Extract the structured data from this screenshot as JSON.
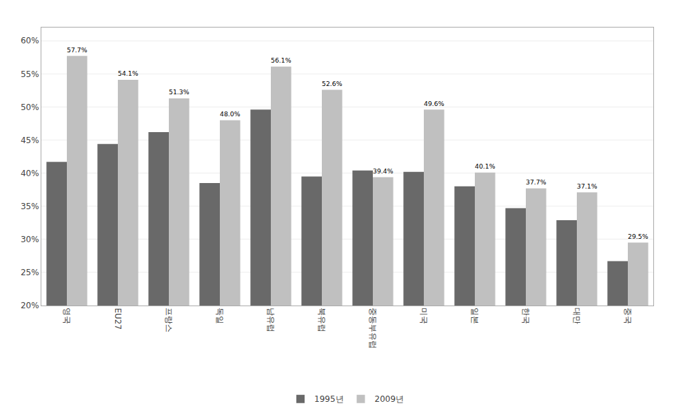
{
  "chart_data": {
    "type": "bar",
    "categories": [
      "영국",
      "EU27",
      "프랑스",
      "독일",
      "남유럽",
      "북유럽",
      "중동부유럽",
      "미국",
      "일본",
      "한국",
      "대만",
      "중국"
    ],
    "series": [
      {
        "name": "1995년",
        "color": "#696969",
        "values": [
          41.7,
          44.4,
          46.2,
          38.5,
          49.6,
          39.5,
          40.4,
          40.2,
          38.0,
          34.7,
          32.9,
          26.7
        ]
      },
      {
        "name": "2009년",
        "color": "#c0c0c0",
        "values": [
          57.7,
          54.1,
          51.3,
          48.0,
          56.1,
          52.6,
          39.4,
          49.6,
          40.1,
          37.7,
          37.1,
          29.5
        ],
        "data_labels": true,
        "value_labels": [
          "57.7%",
          "54.1%",
          "51.3%",
          "48.0%",
          "56.1%",
          "52.6%",
          "39.4%",
          "49.6%",
          "40.1%",
          "37.7%",
          "37.1%",
          "29.5%"
        ]
      }
    ],
    "ylim": [
      20.0,
      62.0
    ],
    "yticks": [
      {
        "value": 20,
        "label": "20%"
      },
      {
        "value": 25,
        "label": "25%"
      },
      {
        "value": 30,
        "label": "30%"
      },
      {
        "value": 35,
        "label": "35%"
      },
      {
        "value": 40,
        "label": "40%"
      },
      {
        "value": 45,
        "label": "45%"
      },
      {
        "value": 50,
        "label": "50%"
      },
      {
        "value": 55,
        "label": "55%"
      },
      {
        "value": 60,
        "label": "60%"
      }
    ],
    "grid": true,
    "legend": "bottom"
  }
}
